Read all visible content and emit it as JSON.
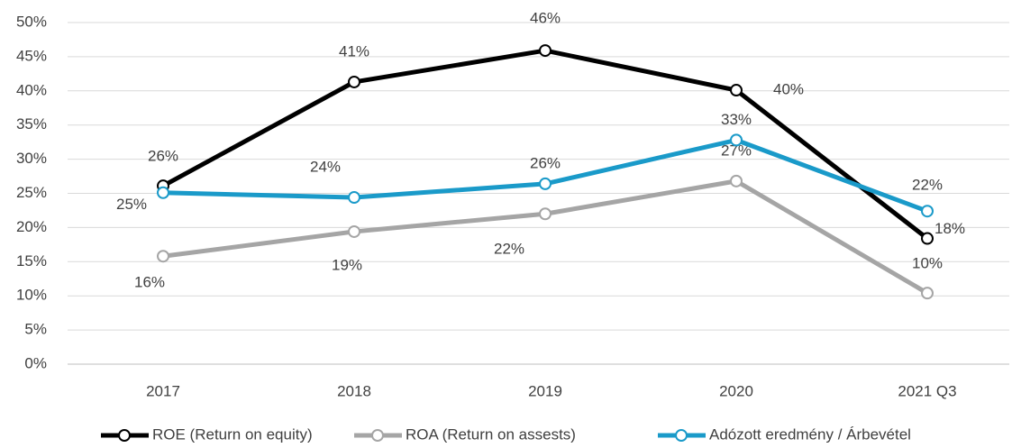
{
  "chart_data": {
    "type": "line",
    "categories": [
      "2017",
      "2018",
      "2019",
      "2020",
      "2021 Q3"
    ],
    "series": [
      {
        "name": "ROE (Return on equity)",
        "color": "#000000",
        "values": [
          26.1,
          41.3,
          45.9,
          40.1,
          18.4
        ],
        "value_labels": [
          "26%",
          "41%",
          "46%",
          "40%",
          "18%"
        ]
      },
      {
        "name": "ROA (Return on assests)",
        "color": "#a5a5a5",
        "values": [
          15.8,
          19.4,
          22.0,
          26.8,
          10.4
        ],
        "value_labels": [
          "16%",
          "19%",
          "22%",
          "27%",
          "10%"
        ]
      },
      {
        "name": "Adózott eredmény / Árbevétel",
        "color": "#1a9ac9",
        "values": [
          25.1,
          24.4,
          26.4,
          32.8,
          22.4
        ],
        "value_labels": [
          "25%",
          "24%",
          "26%",
          "33%",
          "22%"
        ]
      }
    ],
    "ylim": [
      0,
      50
    ],
    "yticks": [
      {
        "value": 0,
        "label": "0%"
      },
      {
        "value": 5,
        "label": "5%"
      },
      {
        "value": 10,
        "label": "10%"
      },
      {
        "value": 15,
        "label": "15%"
      },
      {
        "value": 20,
        "label": "20%"
      },
      {
        "value": 25,
        "label": "25%"
      },
      {
        "value": 30,
        "label": "30%"
      },
      {
        "value": 35,
        "label": "35%"
      },
      {
        "value": 40,
        "label": "40%"
      },
      {
        "value": 45,
        "label": "45%"
      },
      {
        "value": 50,
        "label": "50%"
      }
    ],
    "grid": true,
    "legend": "bottom"
  }
}
